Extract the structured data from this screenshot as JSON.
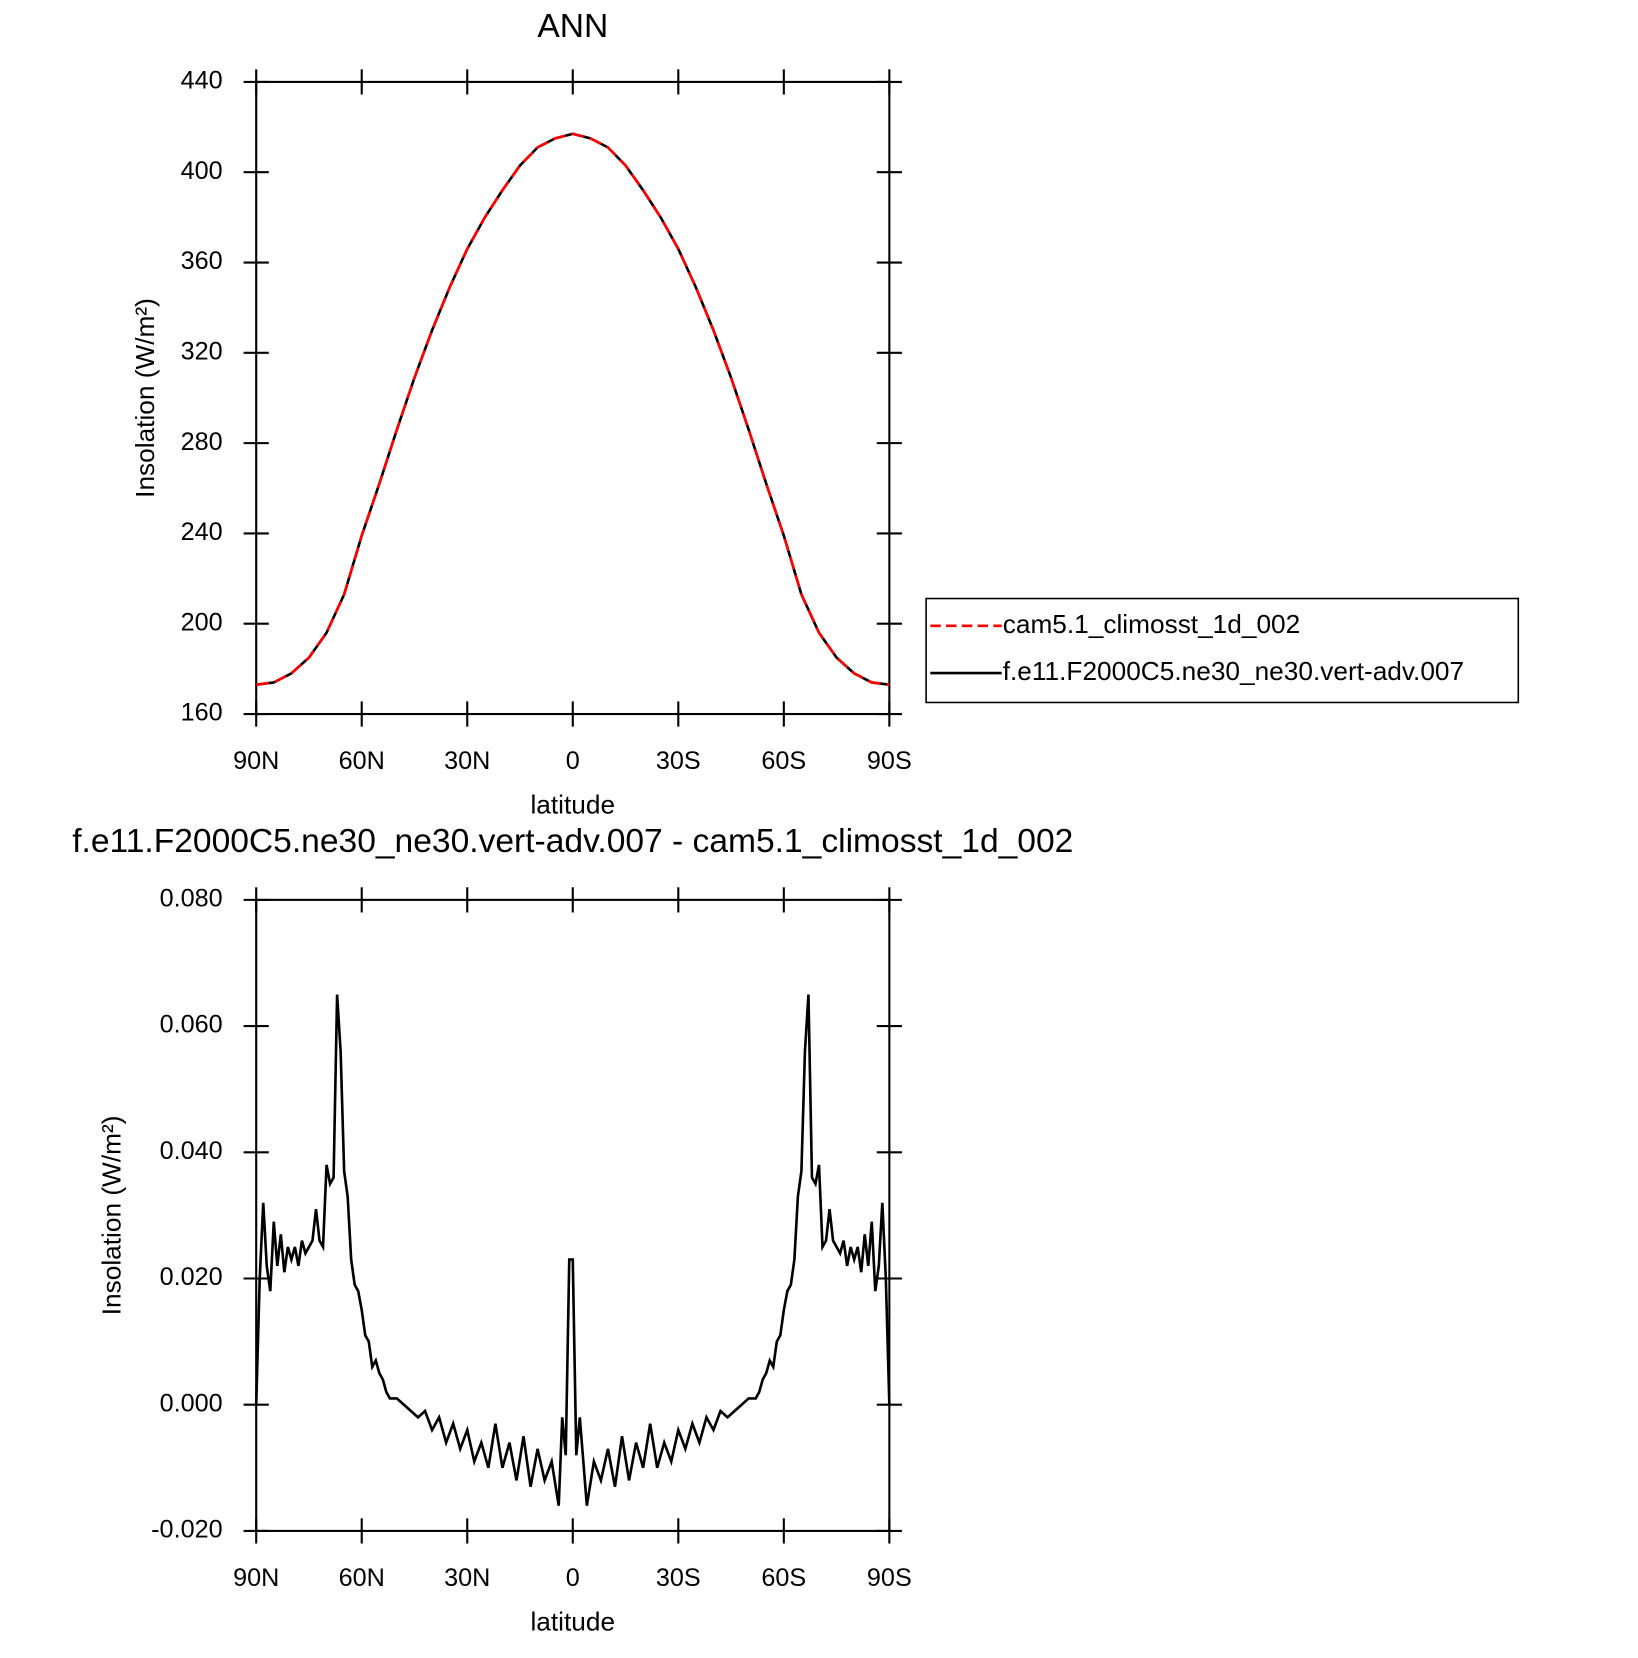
{
  "chart_data": [
    {
      "type": "line",
      "title": "ANN",
      "xlabel": "latitude",
      "ylabel": "Insolation (W/m²)",
      "x": [
        90,
        85,
        80,
        75,
        70,
        65,
        60,
        55,
        50,
        45,
        40,
        35,
        30,
        25,
        20,
        15,
        10,
        5,
        0,
        -5,
        -10,
        -15,
        -20,
        -25,
        -30,
        -35,
        -40,
        -45,
        -50,
        -55,
        -60,
        -65,
        -70,
        -75,
        -80,
        -85,
        -90
      ],
      "series": [
        {
          "name": "cam5.1_climosst_1d_002",
          "color": "#ff0000",
          "dash": true,
          "values": [
            173,
            174,
            178,
            185,
            196,
            213,
            239,
            262,
            286,
            309,
            330,
            349,
            366,
            380,
            392,
            403,
            411,
            415,
            417,
            415,
            411,
            403,
            392,
            380,
            366,
            349,
            330,
            309,
            286,
            262,
            239,
            213,
            196,
            185,
            178,
            174,
            173
          ]
        },
        {
          "name": "f.e11.F2000C5.ne30_ne30.vert-adv.007",
          "color": "#000000",
          "dash": false,
          "values": [
            173,
            174,
            178,
            185,
            196,
            213,
            239,
            262,
            286,
            309,
            330,
            349,
            366,
            380,
            392,
            403,
            411,
            415,
            417,
            415,
            411,
            403,
            392,
            380,
            366,
            349,
            330,
            309,
            286,
            262,
            239,
            213,
            196,
            185,
            178,
            174,
            173
          ]
        }
      ],
      "xlim": [
        90,
        -90
      ],
      "xticks": [
        {
          "value": 90,
          "label": "90N"
        },
        {
          "value": 60,
          "label": "60N"
        },
        {
          "value": 30,
          "label": "30N"
        },
        0,
        {
          "value": -30,
          "label": "30S"
        },
        {
          "value": -60,
          "label": "60S"
        },
        {
          "value": -90,
          "label": "90S"
        }
      ],
      "ylim": [
        160,
        440
      ],
      "yticks": [
        160,
        200,
        240,
        280,
        320,
        360,
        400,
        440
      ],
      "legend": "right"
    },
    {
      "type": "line",
      "title": "f.e11.F2000C5.ne30_ne30.vert-adv.007 - cam5.1_climosst_1d_002",
      "xlabel": "latitude",
      "ylabel": "Insolation (W/m²)",
      "x": [
        90,
        89,
        88,
        87,
        86,
        85,
        84,
        83,
        82,
        81,
        80,
        79,
        78,
        77,
        76,
        75,
        74,
        73,
        72,
        71,
        70,
        69,
        68,
        67,
        66,
        65,
        64,
        63,
        62,
        61,
        60,
        59,
        58,
        57,
        56,
        55,
        54,
        53,
        52,
        50,
        48,
        46,
        44,
        42,
        40,
        38,
        36,
        34,
        32,
        30,
        28,
        26,
        24,
        22,
        20,
        18,
        16,
        14,
        12,
        10,
        8,
        6,
        4,
        3,
        2,
        1,
        0,
        -1,
        -2,
        -4,
        -6,
        -8,
        -10,
        -12,
        -14,
        -16,
        -18,
        -20,
        -22,
        -24,
        -26,
        -28,
        -30,
        -32,
        -34,
        -36,
        -38,
        -40,
        -42,
        -44,
        -46,
        -48,
        -50,
        -52,
        -53,
        -54,
        -55,
        -56,
        -57,
        -58,
        -59,
        -60,
        -61,
        -62,
        -63,
        -64,
        -65,
        -66,
        -67,
        -68,
        -69,
        -70,
        -71,
        -72,
        -73,
        -74,
        -75,
        -76,
        -77,
        -78,
        -79,
        -80,
        -81,
        -82,
        -83,
        -84,
        -85,
        -86,
        -87,
        -88,
        -89,
        -90
      ],
      "series": [
        {
          "color": "#000000",
          "values": [
            0.0,
            0.02,
            0.032,
            0.022,
            0.018,
            0.029,
            0.022,
            0.027,
            0.021,
            0.025,
            0.023,
            0.025,
            0.022,
            0.026,
            0.024,
            0.025,
            0.026,
            0.031,
            0.026,
            0.025,
            0.038,
            0.035,
            0.036,
            0.065,
            0.056,
            0.037,
            0.033,
            0.023,
            0.019,
            0.018,
            0.015,
            0.011,
            0.01,
            0.006,
            0.007,
            0.005,
            0.004,
            0.002,
            0.001,
            0.001,
            0.0,
            -0.001,
            -0.002,
            -0.001,
            -0.004,
            -0.002,
            -0.006,
            -0.003,
            -0.007,
            -0.004,
            -0.009,
            -0.006,
            -0.01,
            -0.003,
            -0.01,
            -0.006,
            -0.012,
            -0.005,
            -0.013,
            -0.007,
            -0.012,
            -0.009,
            -0.016,
            -0.002,
            -0.008,
            0.023,
            0.023,
            -0.008,
            -0.002,
            -0.016,
            -0.009,
            -0.012,
            -0.007,
            -0.013,
            -0.005,
            -0.012,
            -0.006,
            -0.01,
            -0.003,
            -0.01,
            -0.006,
            -0.009,
            -0.004,
            -0.007,
            -0.003,
            -0.006,
            -0.002,
            -0.004,
            -0.001,
            -0.002,
            -0.001,
            0.0,
            0.001,
            0.001,
            0.002,
            0.004,
            0.005,
            0.007,
            0.006,
            0.01,
            0.011,
            0.015,
            0.018,
            0.019,
            0.023,
            0.033,
            0.037,
            0.056,
            0.065,
            0.036,
            0.035,
            0.038,
            0.025,
            0.026,
            0.031,
            0.026,
            0.025,
            0.024,
            0.026,
            0.022,
            0.025,
            0.023,
            0.025,
            0.021,
            0.027,
            0.022,
            0.029,
            0.018,
            0.022,
            0.032,
            0.02,
            0.0
          ]
        }
      ],
      "xlim": [
        90,
        -90
      ],
      "xticks": [
        {
          "value": 90,
          "label": "90N"
        },
        {
          "value": 60,
          "label": "60N"
        },
        {
          "value": 30,
          "label": "30N"
        },
        0,
        {
          "value": -30,
          "label": "30S"
        },
        {
          "value": -60,
          "label": "60S"
        },
        {
          "value": -90,
          "label": "90S"
        }
      ],
      "ylim": [
        -0.02,
        0.08
      ],
      "yticks": [
        {
          "value": -0.02,
          "label": "-0.020"
        },
        {
          "value": 0,
          "label": "0.000"
        },
        {
          "value": 0.02,
          "label": "0.020"
        },
        {
          "value": 0.04,
          "label": "0.040"
        },
        {
          "value": 0.06,
          "label": "0.060"
        },
        {
          "value": 0.08,
          "label": "0.080"
        }
      ]
    }
  ]
}
